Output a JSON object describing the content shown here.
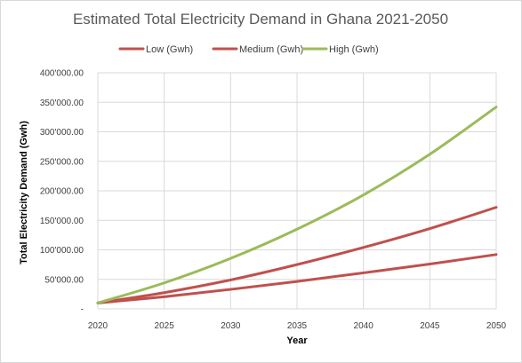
{
  "chart_data": {
    "type": "line",
    "title": "Estimated Total Electricity Demand in Ghana 2021-2050",
    "xlabel": "Year",
    "ylabel": "Total Electricity Demand (Gwh)",
    "xlim": [
      2020,
      2050
    ],
    "ylim": [
      0,
      400000
    ],
    "x_ticks": [
      "2020",
      "2025",
      "2030",
      "2035",
      "2040",
      "2045",
      "2050"
    ],
    "y_ticks": [
      "-",
      "50'000.00",
      "100'000.00",
      "150'000.00",
      "200'000.00",
      "250'000.00",
      "300'000.00",
      "350'000.00",
      "400'000.00"
    ],
    "grid": true,
    "legend_position": "top",
    "x": [
      2020,
      2025,
      2030,
      2035,
      2040,
      2045,
      2050
    ],
    "series": [
      {
        "name": "Low (Gwh)",
        "color": "#c0504d",
        "values": [
          10000,
          20500,
          33000,
          46500,
          61000,
          76000,
          92000
        ]
      },
      {
        "name": "Medium (Gwh)",
        "color": "#c0504d",
        "values": [
          10000,
          27500,
          49000,
          75000,
          104000,
          136000,
          172000
        ]
      },
      {
        "name": "High (Gwh)",
        "color": "#9bbb59",
        "values": [
          10000,
          44000,
          85500,
          135000,
          193000,
          262000,
          342000
        ]
      }
    ]
  }
}
